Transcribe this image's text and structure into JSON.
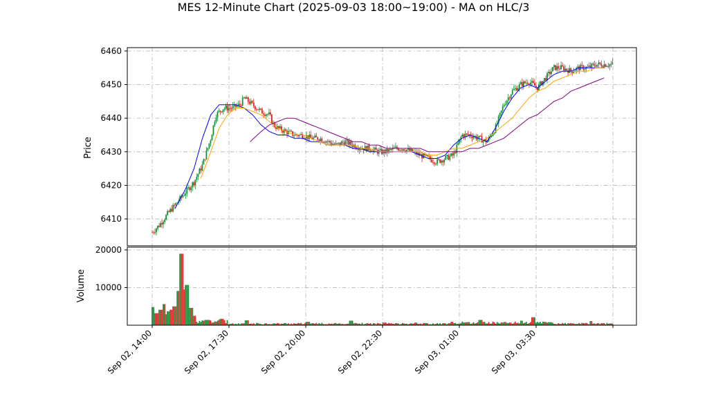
{
  "chart_data": {
    "type": "candlestick",
    "title": "MES 12-Minute Chart (2025-09-03 18:00~19:00) - MA on HLC/3",
    "price_panel": {
      "ylabel": "Price",
      "ylim": [
        6402,
        6461
      ],
      "yticks": [
        6410,
        6420,
        6430,
        6440,
        6450,
        6460
      ],
      "up_color": "#1a8a3a",
      "down_color": "#d62728",
      "candles_hlc3_path": [
        [
          0,
          6406
        ],
        [
          0.8,
          6408
        ],
        [
          2,
          6412
        ],
        [
          3,
          6415
        ],
        [
          4,
          6418
        ],
        [
          5,
          6421
        ],
        [
          6,
          6426
        ],
        [
          7,
          6434
        ],
        [
          7.6,
          6441
        ],
        [
          8.5,
          6443
        ],
        [
          9.5,
          6443
        ],
        [
          10.5,
          6444
        ],
        [
          11,
          6446
        ],
        [
          12,
          6444
        ],
        [
          13,
          6442
        ],
        [
          14,
          6441
        ],
        [
          14.5,
          6438
        ],
        [
          15,
          6437
        ],
        [
          16,
          6436
        ],
        [
          17,
          6435
        ],
        [
          18,
          6435
        ],
        [
          19,
          6434
        ],
        [
          20,
          6434
        ],
        [
          21,
          6433
        ],
        [
          22,
          6432
        ],
        [
          23,
          6433
        ],
        [
          24,
          6432
        ],
        [
          25,
          6431
        ],
        [
          26,
          6431
        ],
        [
          27,
          6430
        ],
        [
          28,
          6430
        ],
        [
          29,
          6431
        ],
        [
          30,
          6431
        ],
        [
          31,
          6430
        ],
        [
          32,
          6429
        ],
        [
          33,
          6428
        ],
        [
          34,
          6427
        ],
        [
          35,
          6428
        ],
        [
          36,
          6429
        ],
        [
          37,
          6435
        ],
        [
          38,
          6435
        ],
        [
          39,
          6434
        ],
        [
          40,
          6433
        ],
        [
          41,
          6437
        ],
        [
          42,
          6444
        ],
        [
          43,
          6448
        ],
        [
          44,
          6450
        ],
        [
          45,
          6451
        ],
        [
          46,
          6449
        ],
        [
          47,
          6452
        ],
        [
          48,
          6455
        ],
        [
          49,
          6455
        ],
        [
          50,
          6454
        ],
        [
          51,
          6455
        ],
        [
          52,
          6455
        ],
        [
          53,
          6456
        ],
        [
          54,
          6456
        ]
      ],
      "ma_fast": {
        "color": "#0000ff",
        "points": [
          [
            2.7,
            6413
          ],
          [
            4,
            6419
          ],
          [
            5,
            6425
          ],
          [
            6,
            6434
          ],
          [
            7,
            6441
          ],
          [
            8,
            6444
          ],
          [
            9,
            6444
          ],
          [
            10,
            6444
          ],
          [
            11,
            6443
          ],
          [
            12,
            6441
          ],
          [
            13,
            6438
          ],
          [
            14,
            6436
          ],
          [
            15,
            6435
          ],
          [
            16,
            6435
          ],
          [
            17,
            6434
          ],
          [
            18,
            6434
          ],
          [
            19,
            6433
          ],
          [
            20,
            6433
          ],
          [
            21,
            6432
          ],
          [
            22,
            6432
          ],
          [
            23,
            6432
          ],
          [
            24,
            6431
          ],
          [
            25,
            6431
          ],
          [
            26,
            6430
          ],
          [
            27,
            6430
          ],
          [
            28,
            6430
          ],
          [
            29,
            6430
          ],
          [
            30,
            6430
          ],
          [
            31,
            6430
          ],
          [
            32,
            6429
          ],
          [
            33,
            6428
          ],
          [
            34,
            6428
          ],
          [
            35,
            6429
          ],
          [
            36,
            6432
          ],
          [
            37,
            6434
          ],
          [
            38,
            6435
          ],
          [
            39,
            6434
          ],
          [
            40,
            6433
          ],
          [
            41,
            6437
          ],
          [
            42,
            6442
          ],
          [
            43,
            6446
          ],
          [
            44,
            6449
          ],
          [
            45,
            6450
          ],
          [
            46,
            6449
          ],
          [
            47,
            6451
          ],
          [
            48,
            6453
          ],
          [
            49,
            6454
          ],
          [
            50,
            6454
          ],
          [
            51,
            6455
          ],
          [
            52,
            6455
          ],
          [
            53,
            6455
          ],
          [
            54,
            6455
          ]
        ]
      },
      "ma_mid": {
        "color": "#ffa500",
        "points": [
          [
            5.8,
            6422
          ],
          [
            7,
            6430
          ],
          [
            8,
            6437
          ],
          [
            9,
            6441
          ],
          [
            10,
            6443
          ],
          [
            11,
            6443
          ],
          [
            12,
            6442
          ],
          [
            13,
            6441
          ],
          [
            14,
            6439
          ],
          [
            15,
            6437
          ],
          [
            16,
            6436
          ],
          [
            17,
            6435
          ],
          [
            18,
            6435
          ],
          [
            19,
            6434
          ],
          [
            20,
            6433
          ],
          [
            21,
            6432
          ],
          [
            22,
            6432
          ],
          [
            23,
            6432
          ],
          [
            24,
            6432
          ],
          [
            25,
            6431
          ],
          [
            26,
            6431
          ],
          [
            27,
            6430
          ],
          [
            28,
            6430
          ],
          [
            29,
            6430
          ],
          [
            30,
            6430
          ],
          [
            31,
            6430
          ],
          [
            32,
            6430
          ],
          [
            33,
            6429
          ],
          [
            34,
            6429
          ],
          [
            35,
            6430
          ],
          [
            36,
            6431
          ],
          [
            37,
            6431
          ],
          [
            38,
            6432
          ],
          [
            39,
            6433
          ],
          [
            40,
            6434
          ],
          [
            41,
            6436
          ],
          [
            42,
            6438
          ],
          [
            43,
            6440
          ],
          [
            44,
            6443
          ],
          [
            45,
            6446
          ],
          [
            46,
            6448
          ],
          [
            47,
            6449
          ],
          [
            48,
            6451
          ],
          [
            49,
            6452
          ],
          [
            50,
            6453
          ],
          [
            51,
            6454
          ],
          [
            52,
            6454
          ],
          [
            53,
            6455
          ],
          [
            54,
            6455
          ]
        ]
      },
      "ma_slow": {
        "color": "#800080",
        "points": [
          [
            11.7,
            6433
          ],
          [
            13,
            6436
          ],
          [
            14,
            6438
          ],
          [
            15,
            6439
          ],
          [
            16,
            6440
          ],
          [
            17,
            6440
          ],
          [
            18,
            6439
          ],
          [
            19,
            6438
          ],
          [
            20,
            6437
          ],
          [
            21,
            6436
          ],
          [
            22,
            6435
          ],
          [
            23,
            6434
          ],
          [
            24,
            6433
          ],
          [
            25,
            6433
          ],
          [
            26,
            6432
          ],
          [
            27,
            6432
          ],
          [
            28,
            6431
          ],
          [
            29,
            6431
          ],
          [
            30,
            6431
          ],
          [
            31,
            6431
          ],
          [
            32,
            6431
          ],
          [
            33,
            6430
          ],
          [
            34,
            6430
          ],
          [
            35,
            6430
          ],
          [
            36,
            6430
          ],
          [
            37,
            6430
          ],
          [
            38,
            6431
          ],
          [
            39,
            6431
          ],
          [
            40,
            6432
          ],
          [
            41,
            6433
          ],
          [
            42,
            6434
          ],
          [
            43,
            6436
          ],
          [
            44,
            6438
          ],
          [
            45,
            6440
          ],
          [
            46,
            6441
          ],
          [
            47,
            6443
          ],
          [
            48,
            6445
          ],
          [
            49,
            6446
          ],
          [
            50,
            6448
          ],
          [
            51,
            6449
          ],
          [
            52,
            6450
          ],
          [
            53,
            6451
          ],
          [
            54,
            6452
          ]
        ]
      }
    },
    "volume_panel": {
      "ylabel": "Volume",
      "ylim": [
        0,
        20000
      ],
      "yticks": [
        10000,
        20000
      ],
      "spikes": [
        [
          0,
          4800
        ],
        [
          0.5,
          3200
        ],
        [
          1.0,
          4100
        ],
        [
          1.4,
          5600
        ],
        [
          1.9,
          3700
        ],
        [
          2.3,
          4100
        ],
        [
          2.7,
          5000
        ],
        [
          3.1,
          9100
        ],
        [
          3.5,
          19000
        ],
        [
          3.9,
          9500
        ],
        [
          4.2,
          10700
        ],
        [
          4.6,
          4600
        ],
        [
          5.0,
          2500
        ],
        [
          6.6,
          1400
        ],
        [
          8.3,
          1700
        ],
        [
          11.3,
          1300
        ],
        [
          18.6,
          900
        ],
        [
          23.8,
          1200
        ],
        [
          27.8,
          700
        ],
        [
          31.5,
          700
        ],
        [
          35.8,
          900
        ],
        [
          39.2,
          1400
        ],
        [
          44.1,
          1200
        ],
        [
          45.5,
          2100
        ],
        [
          47.5,
          800
        ],
        [
          52.4,
          1100
        ]
      ]
    },
    "x_axis": {
      "tick_labels": [
        "Sep 02, 14:00",
        "Sep 02, 17:30",
        "Sep 02, 20:00",
        "Sep 02, 22:30",
        "Sep 03, 01:00",
        "Sep 03, 03:30"
      ]
    }
  }
}
